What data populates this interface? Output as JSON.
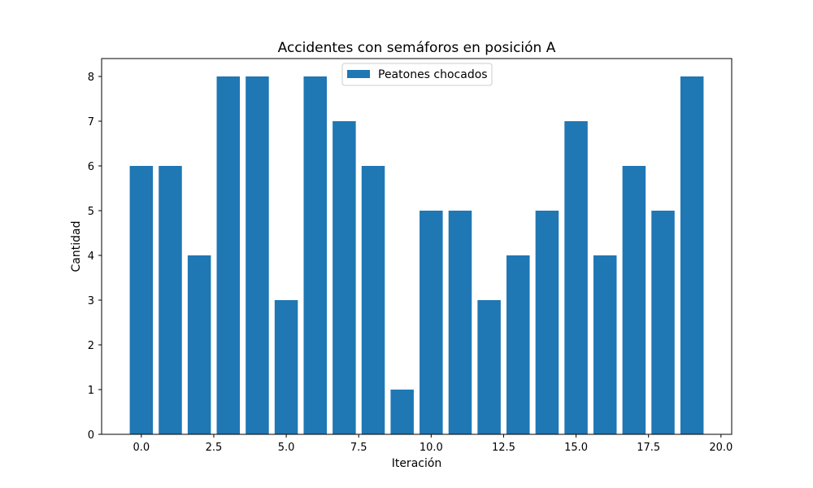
{
  "chart_data": {
    "type": "bar",
    "title": "Accidentes con semáforos en posición A",
    "xlabel": "Iteración",
    "ylabel": "Cantidad",
    "x": [
      0,
      1,
      2,
      3,
      4,
      5,
      6,
      7,
      8,
      9,
      10,
      11,
      12,
      13,
      14,
      15,
      16,
      17,
      18,
      19
    ],
    "series": [
      {
        "name": "Peatones chocados",
        "values": [
          6,
          6,
          4,
          8,
          8,
          3,
          8,
          7,
          6,
          1,
          5,
          5,
          3,
          4,
          5,
          7,
          4,
          6,
          5,
          8
        ]
      }
    ],
    "xlim": [
      -1.37,
      20.37
    ],
    "ylim": [
      0,
      8.4
    ],
    "xticks": [
      "0.0",
      "2.5",
      "5.0",
      "7.5",
      "10.0",
      "12.5",
      "15.0",
      "17.5",
      "20.0"
    ],
    "yticks": [
      "0",
      "1",
      "2",
      "3",
      "4",
      "5",
      "6",
      "7",
      "8"
    ],
    "bar_width": 0.8,
    "grid": false,
    "legend_position": "upper center",
    "colors": {
      "bar": "#1f77b4"
    }
  }
}
